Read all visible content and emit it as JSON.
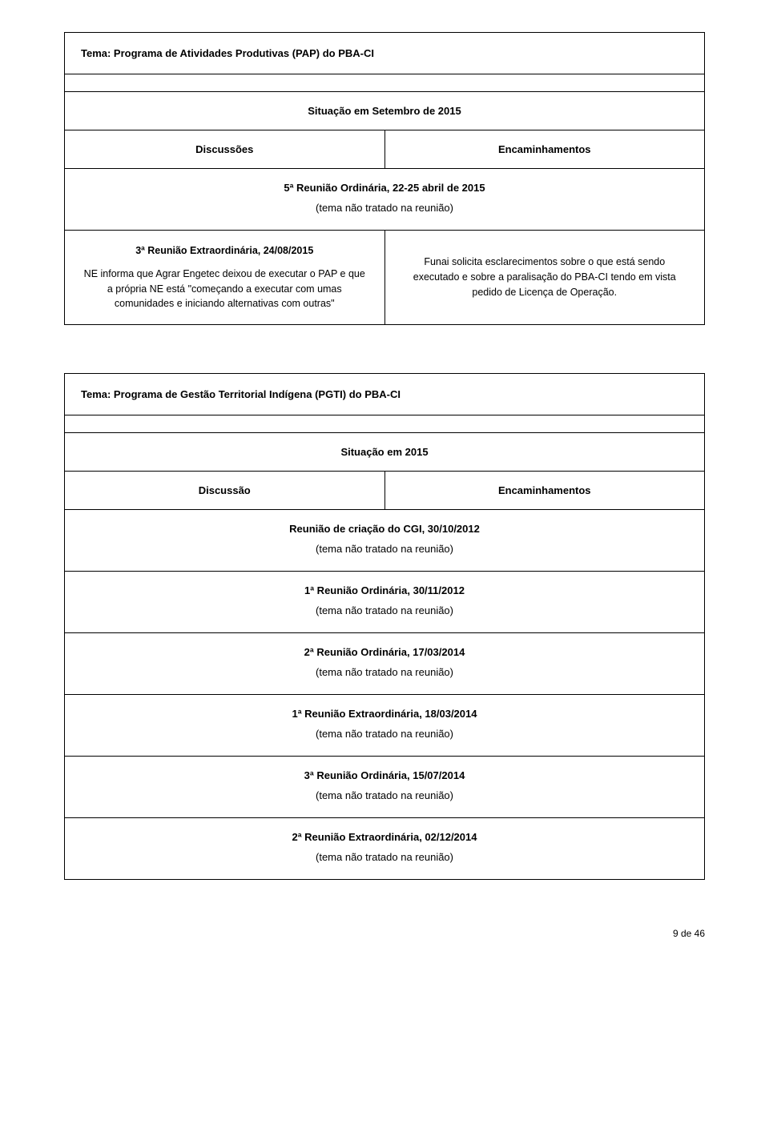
{
  "section1": {
    "title": "Tema: Programa de Atividades Produtivas (PAP) do PBA-CI",
    "subtitle": "Situação em Setembro de 2015",
    "col1": "Discussões",
    "col2": "Encaminhamentos",
    "row1_title": "5ª  Reunião Ordinária, 22-25 abril de 2015",
    "row1_sub": "(tema não tratado na reunião)",
    "row2_left_title": "3ª  Reunião Extraordinária, 24/08/2015",
    "row2_left_body": "NE informa que Agrar Engetec deixou de executar o PAP e que a própria NE está \"começando a executar com umas comunidades e iniciando alternativas com outras\"",
    "row2_right": "Funai solicita esclarecimentos sobre o que está sendo executado e sobre a paralisação do PBA-CI tendo em vista pedido de Licença de Operação."
  },
  "section2": {
    "title": "Tema: Programa de Gestão Territorial Indígena (PGTI) do PBA-CI",
    "subtitle": "Situação em 2015",
    "col1": "Discussão",
    "col2": "Encaminhamentos",
    "rows": [
      {
        "title": "Reunião de criação do CGI, 30/10/2012",
        "sub": "(tema não tratado na reunião)"
      },
      {
        "title": "1ª  Reunião Ordinária, 30/11/2012",
        "sub": "(tema não tratado na reunião)"
      },
      {
        "title": "2ª  Reunião Ordinária, 17/03/2014",
        "sub": "(tema não tratado na reunião)"
      },
      {
        "title": "1ª  Reunião Extraordinária, 18/03/2014",
        "sub": "(tema não tratado na reunião)"
      },
      {
        "title": "3ª  Reunião Ordinária, 15/07/2014",
        "sub": "(tema não tratado na reunião)"
      },
      {
        "title": "2ª  Reunião Extraordinária, 02/12/2014",
        "sub": "(tema não tratado na reunião)"
      }
    ]
  },
  "page_number": "9 de 46"
}
